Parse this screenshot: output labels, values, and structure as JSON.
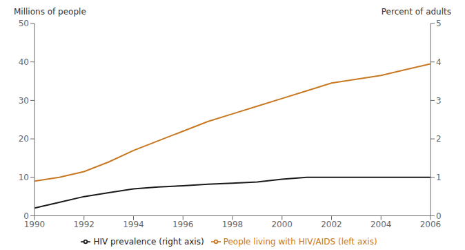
{
  "chart_data": {
    "type": "line",
    "x": [
      1990,
      1991,
      1992,
      1993,
      1994,
      1995,
      1996,
      1997,
      1998,
      1999,
      2000,
      2001,
      2002,
      2003,
      2004,
      2005,
      2006
    ],
    "series": [
      {
        "name": "People living with HIV/AIDS (left axis)",
        "color": "#c87820",
        "values": [
          9.0,
          10.0,
          11.5,
          14.0,
          17.0,
          19.5,
          22.0,
          24.5,
          26.5,
          28.5,
          30.5,
          32.5,
          34.5,
          35.5,
          36.5,
          38.0,
          39.5
        ]
      },
      {
        "name": "HIV prevalence (right axis)",
        "color": "#1a1a1a",
        "axis": "y2",
        "values": [
          0.2,
          0.35,
          0.5,
          0.6,
          0.7,
          0.75,
          0.78,
          0.82,
          0.85,
          0.88,
          0.95,
          1.0,
          1.0,
          1.0,
          1.0,
          1.0,
          1.0
        ]
      }
    ],
    "xlim": [
      1990,
      2006
    ],
    "xticks": [
      1990,
      1992,
      1994,
      1996,
      1998,
      2000,
      2002,
      2004,
      2006
    ],
    "ylim": [
      0,
      50
    ],
    "yticks": [
      0,
      10,
      20,
      30,
      40,
      50
    ],
    "y2lim": [
      0,
      5
    ],
    "y2ticks": [
      0,
      1,
      2,
      3,
      4,
      5
    ],
    "ylabel": "Millions of people",
    "y2label": "Percent of adults",
    "grid": false,
    "legend": "bottom"
  }
}
